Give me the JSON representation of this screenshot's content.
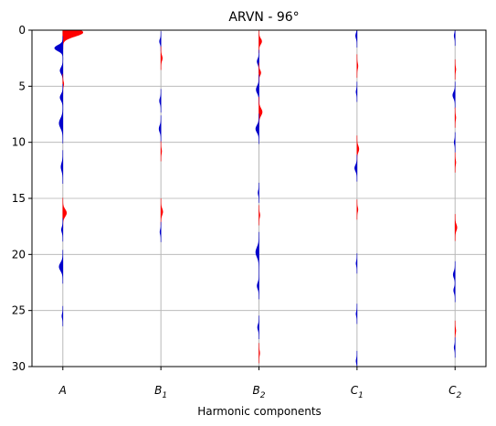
{
  "chart_data": {
    "type": "wiggle",
    "title": "ARVN - 96°",
    "xlabel": "Harmonic components",
    "ylabel": "",
    "ylim": [
      30,
      0
    ],
    "y_ticks": [
      0,
      5,
      10,
      15,
      20,
      25,
      30
    ],
    "grid": "horizontal",
    "colors": {
      "positive": "#ff0000",
      "negative": "#0000cc",
      "trace_line": "#b8b8b8"
    },
    "categories": [
      {
        "base": "A",
        "sub": ""
      },
      {
        "base": "B",
        "sub": "1"
      },
      {
        "base": "B",
        "sub": "2"
      },
      {
        "base": "C",
        "sub": "1"
      },
      {
        "base": "C",
        "sub": "2"
      }
    ],
    "series": [
      {
        "wiggles": [
          {
            "depth": 0.2,
            "amp": 22,
            "width": 0.5
          },
          {
            "depth": 1.6,
            "amp": -9,
            "width": 0.35
          },
          {
            "depth": 3.6,
            "amp": -3,
            "width": 0.4
          },
          {
            "depth": 4.8,
            "amp": 1,
            "width": 0.3
          },
          {
            "depth": 6.0,
            "amp": -3,
            "width": 0.4
          },
          {
            "depth": 8.3,
            "amp": -4,
            "width": 0.6
          },
          {
            "depth": 12.2,
            "amp": -2,
            "width": 0.5
          },
          {
            "depth": 16.3,
            "amp": 4,
            "width": 0.45
          },
          {
            "depth": 17.8,
            "amp": -1.5,
            "width": 0.35
          },
          {
            "depth": 21.1,
            "amp": -4,
            "width": 0.5
          },
          {
            "depth": 25.5,
            "amp": -1,
            "width": 0.3
          }
        ]
      },
      {
        "wiggles": [
          {
            "depth": 1.0,
            "amp": -1.5,
            "width": 0.3
          },
          {
            "depth": 2.5,
            "amp": 1.5,
            "width": 0.35
          },
          {
            "depth": 6.3,
            "amp": -1.5,
            "width": 0.35
          },
          {
            "depth": 8.8,
            "amp": -2,
            "width": 0.4
          },
          {
            "depth": 10.8,
            "amp": 0.8,
            "width": 0.3
          },
          {
            "depth": 16.2,
            "amp": 2,
            "width": 0.4
          },
          {
            "depth": 18.0,
            "amp": -1,
            "width": 0.3
          }
        ]
      },
      {
        "wiggles": [
          {
            "depth": 1.0,
            "amp": 3,
            "width": 0.35
          },
          {
            "depth": 2.8,
            "amp": -2,
            "width": 0.35
          },
          {
            "depth": 3.8,
            "amp": 2,
            "width": 0.3
          },
          {
            "depth": 5.3,
            "amp": -3,
            "width": 0.45
          },
          {
            "depth": 7.3,
            "amp": 3.5,
            "width": 0.45
          },
          {
            "depth": 8.8,
            "amp": -3.5,
            "width": 0.45
          },
          {
            "depth": 14.5,
            "amp": -1,
            "width": 0.3
          },
          {
            "depth": 16.5,
            "amp": 1,
            "width": 0.3
          },
          {
            "depth": 19.8,
            "amp": -3.5,
            "width": 0.6
          },
          {
            "depth": 22.8,
            "amp": -2,
            "width": 0.4
          },
          {
            "depth": 26.5,
            "amp": -1.5,
            "width": 0.35
          },
          {
            "depth": 28.8,
            "amp": 0.8,
            "width": 0.3
          }
        ]
      },
      {
        "wiggles": [
          {
            "depth": 0.5,
            "amp": -1.5,
            "width": 0.35
          },
          {
            "depth": 3.2,
            "amp": 1,
            "width": 0.35
          },
          {
            "depth": 5.5,
            "amp": -1,
            "width": 0.3
          },
          {
            "depth": 10.6,
            "amp": 2,
            "width": 0.4
          },
          {
            "depth": 12.3,
            "amp": -2.5,
            "width": 0.4
          },
          {
            "depth": 16.0,
            "amp": 1,
            "width": 0.3
          },
          {
            "depth": 20.8,
            "amp": -1,
            "width": 0.3
          },
          {
            "depth": 25.3,
            "amp": -1,
            "width": 0.3
          },
          {
            "depth": 29.5,
            "amp": -1,
            "width": 0.3
          }
        ]
      },
      {
        "wiggles": [
          {
            "depth": 0.5,
            "amp": -1,
            "width": 0.3
          },
          {
            "depth": 3.5,
            "amp": 0.8,
            "width": 0.3
          },
          {
            "depth": 5.8,
            "amp": -2.5,
            "width": 0.4
          },
          {
            "depth": 7.8,
            "amp": 0.8,
            "width": 0.3
          },
          {
            "depth": 10.0,
            "amp": -1,
            "width": 0.3
          },
          {
            "depth": 11.8,
            "amp": 0.8,
            "width": 0.3
          },
          {
            "depth": 17.6,
            "amp": 2,
            "width": 0.4
          },
          {
            "depth": 21.8,
            "amp": -2,
            "width": 0.4
          },
          {
            "depth": 23.2,
            "amp": -1.5,
            "width": 0.35
          },
          {
            "depth": 26.8,
            "amp": 0.8,
            "width": 0.3
          },
          {
            "depth": 28.3,
            "amp": -1,
            "width": 0.3
          }
        ]
      }
    ]
  }
}
